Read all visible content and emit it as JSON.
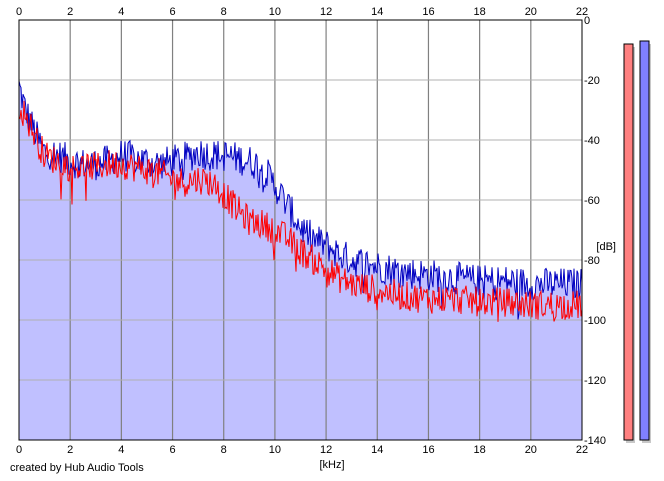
{
  "chart_data": {
    "type": "line",
    "title": "",
    "xlabel": "[kHz]",
    "ylabel": "[dB]",
    "xlim": [
      0,
      22
    ],
    "ylim": [
      -140,
      0
    ],
    "x_ticks": [
      "0",
      "2",
      "4",
      "6",
      "8",
      "10",
      "12",
      "14",
      "16",
      "18",
      "20",
      "22"
    ],
    "y_ticks": [
      "0",
      "-20",
      "-40",
      "-60",
      "-80",
      "-100",
      "-120",
      "-140"
    ],
    "grid": true,
    "series": [
      {
        "color": "#0000c0",
        "fill": "#c0c0ff",
        "x": [
          0,
          0.25,
          0.5,
          0.75,
          1,
          1.5,
          2,
          2.5,
          3,
          3.5,
          4,
          4.5,
          5,
          5.5,
          6,
          6.5,
          7,
          7.5,
          8,
          8.5,
          9,
          9.5,
          10,
          10.5,
          11,
          11.5,
          12,
          12.5,
          13,
          13.5,
          14,
          14.5,
          15,
          16,
          17,
          18,
          19,
          20,
          21,
          22
        ],
        "values": [
          -22,
          -30,
          -35,
          -40,
          -44,
          -45,
          -47,
          -48,
          -48,
          -47,
          -45,
          -46,
          -47,
          -48,
          -47,
          -46,
          -44,
          -45,
          -45,
          -46,
          -47,
          -49,
          -55,
          -62,
          -69,
          -73,
          -75,
          -78,
          -80,
          -81,
          -82,
          -83,
          -84,
          -85,
          -86,
          -87,
          -87,
          -88,
          -88,
          -88
        ]
      },
      {
        "color": "#ff0000",
        "x": [
          0,
          0.25,
          0.5,
          0.75,
          1,
          1.5,
          2,
          2.5,
          3,
          3.5,
          4,
          4.5,
          5,
          5.5,
          6,
          6.5,
          7,
          7.5,
          8,
          8.5,
          9,
          9.5,
          10,
          10.5,
          11,
          11.5,
          12,
          12.5,
          13,
          13.5,
          14,
          14.5,
          15,
          16,
          17,
          18,
          19,
          20,
          21,
          22
        ],
        "values": [
          -28,
          -32,
          -36,
          -41,
          -45,
          -47,
          -49,
          -49,
          -49,
          -48,
          -48,
          -49,
          -50,
          -51,
          -53,
          -54,
          -53,
          -54,
          -58,
          -63,
          -67,
          -68,
          -70,
          -73,
          -77,
          -80,
          -83,
          -86,
          -88,
          -89,
          -90,
          -91,
          -92,
          -93,
          -93,
          -94,
          -94,
          -95,
          -95,
          -95
        ]
      }
    ],
    "meters": [
      {
        "color": "#ff8080",
        "level_db": -8
      },
      {
        "color": "#8080ff",
        "level_db": -7
      }
    ]
  },
  "footer": {
    "credit": "created by Hub Audio Tools"
  }
}
